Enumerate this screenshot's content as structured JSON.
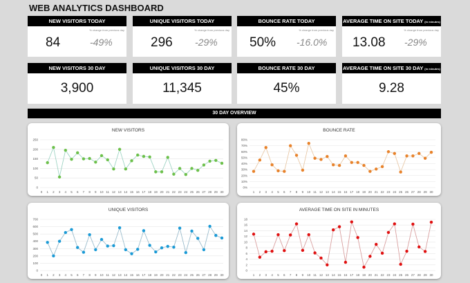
{
  "title": "WEB ANALYTICS DASHBOARD",
  "today_cards": [
    {
      "label": "NEW VISITORS TODAY",
      "note": "% change from previous day",
      "value": "84",
      "change": "-49%"
    },
    {
      "label": "UNIQUE VISITORS TODAY",
      "note": "% change from previous day",
      "value": "296",
      "change": "-29%"
    },
    {
      "label": "BOUNCE RATE TODAY",
      "note": "% change from previous day",
      "value": "50%",
      "change": "-16.0%"
    },
    {
      "label": "AVERAGE TIME ON SITE TODAY",
      "label_suffix": "(in minutes)",
      "note": "% change from previous day",
      "value": "13.08",
      "change": "-29%"
    }
  ],
  "month_cards": [
    {
      "label": "NEW VISITORS 30 DAY",
      "value": "3,900"
    },
    {
      "label": "UNIQUE VISITORS 30 DAY",
      "value": "11,345"
    },
    {
      "label": "BOUNCE RATE 30 DAY",
      "value": "45%"
    },
    {
      "label": "AVERAGE TIME ON SITE 30 DAY",
      "label_suffix": "(in minutes)",
      "value": "9.28"
    }
  ],
  "overview_label": "30 DAY OVERVIEW",
  "chart_data": [
    {
      "type": "line",
      "title": "NEW VISITORS",
      "color": "#6cc04a",
      "line_color": "#9fd4c4",
      "ylim": [
        0,
        250
      ],
      "ystep": 50,
      "yformat": "num",
      "x_start": 0,
      "grid": true,
      "x": [
        1,
        2,
        3,
        4,
        5,
        6,
        7,
        8,
        9,
        10,
        11,
        12,
        13,
        14,
        15,
        16,
        17,
        18,
        19,
        20,
        21,
        22,
        23,
        24,
        25,
        26,
        27,
        28,
        29,
        30
      ],
      "values": [
        130,
        210,
        55,
        195,
        148,
        182,
        150,
        152,
        133,
        167,
        145,
        97,
        200,
        97,
        140,
        170,
        163,
        160,
        82,
        82,
        158,
        70,
        100,
        68,
        100,
        90,
        118,
        138,
        142,
        127
      ]
    },
    {
      "type": "line",
      "title": "BOUNCE RATE",
      "color": "#e8822a",
      "line_color": "#e8c9a8",
      "ylim": [
        0,
        80
      ],
      "ystep": 10,
      "yformat": "pct",
      "x_start": 1,
      "grid": true,
      "x": [
        1,
        2,
        3,
        4,
        5,
        6,
        7,
        8,
        9,
        10,
        11,
        12,
        13,
        14,
        15,
        16,
        17,
        18,
        19,
        20,
        21,
        22,
        23,
        24,
        25,
        26,
        27,
        28,
        29,
        30
      ],
      "values": [
        27,
        46,
        67,
        38,
        28,
        27,
        70,
        54,
        29,
        74,
        49,
        47,
        52,
        38,
        37,
        53,
        42,
        42,
        37,
        27,
        31,
        35,
        60,
        57,
        26,
        53,
        53,
        57,
        49,
        59
      ]
    },
    {
      "type": "line",
      "title": "UNIQUE VISITORS",
      "color": "#1a9ad6",
      "line_color": "#9bbccc",
      "ylim": [
        0,
        700
      ],
      "ystep": 100,
      "yformat": "num",
      "x_start": 0,
      "grid": true,
      "x": [
        1,
        2,
        3,
        4,
        5,
        6,
        7,
        8,
        9,
        10,
        11,
        12,
        13,
        14,
        15,
        16,
        17,
        18,
        19,
        20,
        21,
        22,
        23,
        24,
        25,
        26,
        27,
        28,
        29,
        30
      ],
      "values": [
        385,
        200,
        400,
        520,
        560,
        315,
        250,
        490,
        285,
        425,
        335,
        340,
        585,
        285,
        230,
        290,
        545,
        345,
        255,
        310,
        330,
        320,
        580,
        245,
        540,
        440,
        285,
        605,
        480,
        445
      ]
    },
    {
      "type": "line",
      "title": "AVERAGE TIME ON SITE IN MINUTES",
      "color": "#e01010",
      "line_color": "#d9a0a0",
      "ylim": [
        0,
        18
      ],
      "ystep": 2,
      "yformat": "num",
      "x_start": 1,
      "grid": true,
      "x": [
        1,
        2,
        3,
        4,
        5,
        6,
        7,
        8,
        9,
        10,
        11,
        12,
        13,
        14,
        15,
        16,
        17,
        18,
        19,
        20,
        21,
        22,
        23,
        24,
        25,
        26,
        27,
        28,
        29,
        30
      ],
      "values": [
        12.8,
        4.7,
        6.6,
        6.8,
        12.6,
        7.0,
        12.5,
        16.4,
        7.1,
        12.6,
        6.2,
        4.4,
        2.0,
        14.3,
        15.4,
        2.9,
        17.1,
        11.6,
        1.2,
        5.0,
        9.2,
        6.1,
        13.4,
        16.4,
        2.2,
        6.8,
        16.3,
        8.3,
        6.7,
        17.0
      ]
    }
  ]
}
